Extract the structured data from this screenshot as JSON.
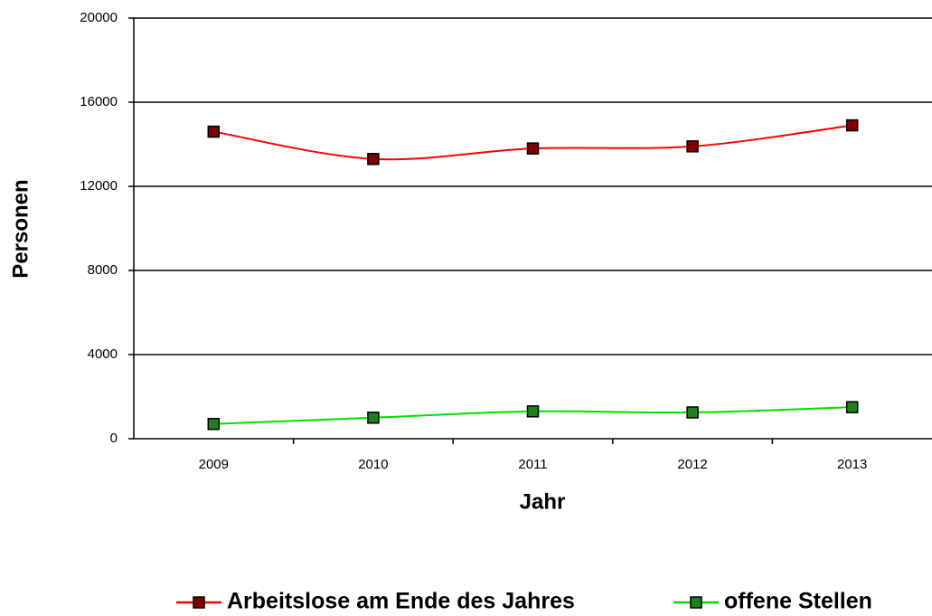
{
  "chart_data": {
    "type": "line",
    "x_label": "Jahr",
    "y_label": "Personen",
    "categories": [
      "2009",
      "2010",
      "2011",
      "2012",
      "2013"
    ],
    "series": [
      {
        "name": "Arbeitslose am Ende des Jahres",
        "color": "#ff0000",
        "marker_color": "#800000",
        "values": [
          14600,
          13300,
          13800,
          13900,
          14900
        ]
      },
      {
        "name": "offene Stellen",
        "color": "#00e000",
        "marker_color": "#208020",
        "values": [
          700,
          1000,
          1300,
          1250,
          1500
        ]
      }
    ],
    "ylim": [
      0,
      20000
    ],
    "yticks": [
      0,
      4000,
      8000,
      12000,
      16000,
      20000
    ],
    "grid": true,
    "legend": "bottom"
  }
}
